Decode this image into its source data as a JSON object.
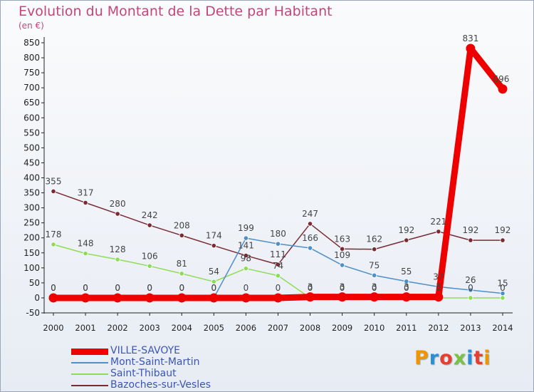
{
  "chart_data": {
    "type": "line",
    "title": "Evolution du Montant de la Dette par Habitant",
    "subtitle": "(en €)",
    "x": [
      "2000",
      "2001",
      "2002",
      "2003",
      "2004",
      "2005",
      "2006",
      "2007",
      "2008",
      "2009",
      "2010",
      "2011",
      "2012",
      "2013",
      "2014"
    ],
    "ylim": [
      -50,
      850
    ],
    "yticks": [
      -50,
      0,
      50,
      100,
      150,
      200,
      250,
      300,
      350,
      400,
      450,
      500,
      550,
      600,
      650,
      700,
      750,
      800,
      850
    ],
    "grid": false,
    "legend_position": "bottom-left",
    "series": [
      {
        "name": "VILLE-SAVOYE",
        "color": "#ee0000",
        "values": [
          0,
          0,
          0,
          0,
          0,
          0,
          0,
          0,
          3,
          3,
          3,
          3,
          3,
          831,
          696
        ]
      },
      {
        "name": "Mont-Saint-Martin",
        "color": "#4f8fc8",
        "values": [
          0,
          0,
          0,
          0,
          0,
          0,
          199,
          180,
          166,
          109,
          75,
          55,
          37,
          26,
          15
        ]
      },
      {
        "name": "Saint-Thibaut",
        "color": "#8edc55",
        "values": [
          178,
          148,
          128,
          106,
          81,
          54,
          98,
          74,
          0,
          0,
          0,
          0,
          0,
          0,
          0
        ]
      },
      {
        "name": "Bazoches-sur-Vesles",
        "color": "#7a2a33",
        "values": [
          355,
          317,
          280,
          242,
          208,
          174,
          141,
          111,
          247,
          163,
          162,
          192,
          221,
          192,
          192
        ]
      }
    ],
    "data_labels": [
      {
        "series": 0,
        "values": [
          "0",
          "0",
          "0",
          "0",
          "0",
          "0",
          "0",
          "0",
          "3",
          "3",
          "3",
          "3",
          "3",
          "831",
          "696"
        ]
      },
      {
        "series": 1,
        "values": [
          "0",
          "0",
          "0",
          "0",
          "0",
          "0",
          "199",
          "180",
          "166",
          "109",
          "75",
          "55",
          "37",
          "26",
          "15"
        ]
      },
      {
        "series": 2,
        "values": [
          "178",
          "148",
          "128",
          "106",
          "81",
          "54",
          "98",
          "74",
          "0",
          "0",
          "0",
          "0",
          "0",
          "0",
          "0"
        ]
      },
      {
        "series": 3,
        "values": [
          "355",
          "317",
          "280",
          "242",
          "208",
          "174",
          "141",
          "111",
          "247",
          "163",
          "162",
          "192",
          "221",
          "192",
          "192"
        ]
      }
    ]
  },
  "logo": {
    "text": "Proxiti",
    "colors": [
      "#f29400",
      "#2a8fd6",
      "#e83d2f",
      "#7cc242",
      "#2a8fd6",
      "#e83d2f",
      "#f29400"
    ]
  }
}
